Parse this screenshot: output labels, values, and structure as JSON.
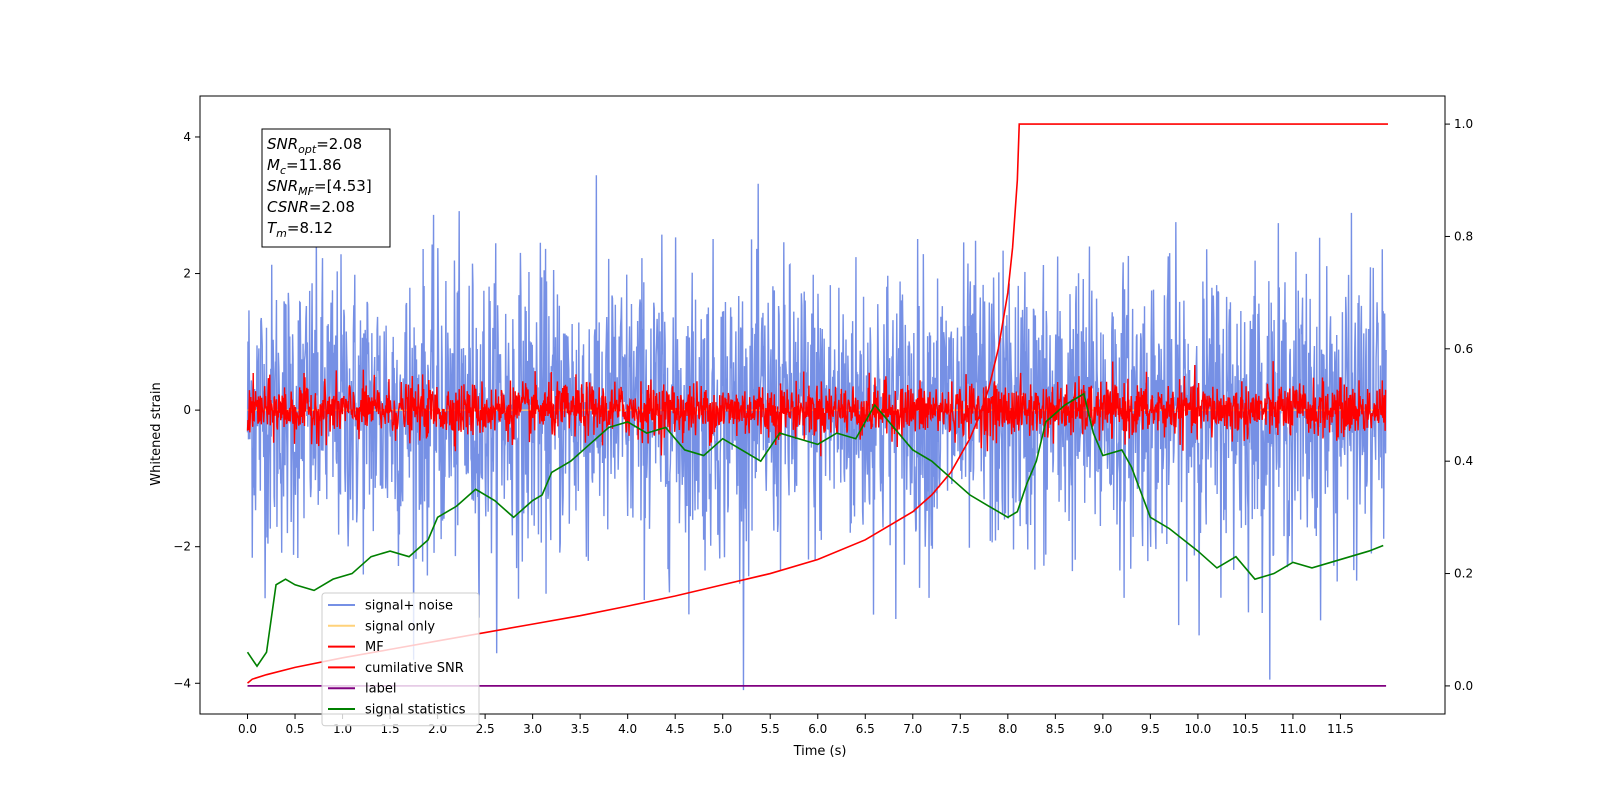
{
  "chart_data": {
    "type": "line",
    "xlabel": "Time (s)",
    "ylabel": "Whitened strain",
    "xlim": [
      -0.5,
      12.6
    ],
    "ylim_left": [
      -4.45,
      4.6
    ],
    "ylim_right": [
      -0.05,
      1.05
    ],
    "x_ticks": [
      0.0,
      0.5,
      1.0,
      1.5,
      2.0,
      2.5,
      3.0,
      3.5,
      4.0,
      4.5,
      5.0,
      5.5,
      6.0,
      6.5,
      7.0,
      7.5,
      8.0,
      8.5,
      9.0,
      9.5,
      10.0,
      10.5,
      11.0,
      11.5
    ],
    "x_tick_labels": [
      "0.0",
      "0.5",
      "1.0",
      "1.5",
      "2.0",
      "2.5",
      "3.0",
      "3.5",
      "4.0",
      "4.5",
      "5.0",
      "5.5",
      "6.0",
      "6.5",
      "7.0",
      "7.5",
      "8.0",
      "8.5",
      "9.0",
      "9.5",
      "10.0",
      "10.5",
      "11.0",
      "11.5"
    ],
    "y_left_ticks": [
      -4,
      -2,
      0,
      2,
      4
    ],
    "y_left_tick_labels": [
      "−4",
      "−2",
      "0",
      "2",
      "4"
    ],
    "y_right_ticks": [
      0.0,
      0.2,
      0.4,
      0.6,
      0.8,
      1.0
    ],
    "y_right_tick_labels": [
      "0.0",
      "0.2",
      "0.4",
      "0.6",
      "0.8",
      "1.0"
    ],
    "annotation": {
      "lines": [
        {
          "sym": "SNR",
          "sub": "opt",
          "value": "=2.08"
        },
        {
          "sym": "M",
          "sub": "c",
          "value": "=11.86"
        },
        {
          "sym": "SNR",
          "sub": "MF",
          "value": "=[4.53]"
        },
        {
          "sym": "CSNR",
          "sub": "",
          "value": "=2.08"
        },
        {
          "sym": "T",
          "sub": "m",
          "value": "=8.12"
        }
      ]
    },
    "series": [
      {
        "name": "signal+ noise",
        "color": "#7690e5",
        "axis": "left",
        "noise_std": 1.05,
        "x_range": [
          0.0,
          11.98
        ]
      },
      {
        "name": "signal only",
        "color": "#ffd27a",
        "axis": "left",
        "x_range": [
          0.0,
          11.98
        ]
      },
      {
        "name": "MF",
        "color": "#ff0000",
        "axis": "left",
        "noise_std": 0.2,
        "x_range": [
          0.0,
          11.98
        ]
      },
      {
        "name": "cumilative SNR",
        "color": "#ff0000",
        "axis": "right",
        "x": [
          0.0,
          0.05,
          0.2,
          0.5,
          1.0,
          1.5,
          2.0,
          2.5,
          3.0,
          3.5,
          4.0,
          4.5,
          5.0,
          5.5,
          6.0,
          6.5,
          7.0,
          7.2,
          7.4,
          7.6,
          7.7,
          7.8,
          7.9,
          8.0,
          8.05,
          8.1,
          8.12,
          12.0
        ],
        "y": [
          0.005,
          0.012,
          0.02,
          0.033,
          0.05,
          0.065,
          0.08,
          0.095,
          0.11,
          0.125,
          0.142,
          0.16,
          0.18,
          0.2,
          0.225,
          0.26,
          0.31,
          0.34,
          0.38,
          0.44,
          0.48,
          0.53,
          0.6,
          0.7,
          0.78,
          0.9,
          1.0,
          1.0
        ]
      },
      {
        "name": "label",
        "color": "#800080",
        "axis": "right",
        "x": [
          0.0,
          11.98
        ],
        "y": [
          0.0,
          0.0
        ]
      },
      {
        "name": "signal statistics",
        "color": "#008000",
        "axis": "right",
        "x": [
          0.0,
          0.1,
          0.2,
          0.3,
          0.4,
          0.5,
          0.7,
          0.9,
          1.1,
          1.3,
          1.5,
          1.7,
          1.9,
          2.0,
          2.2,
          2.4,
          2.6,
          2.8,
          3.0,
          3.1,
          3.2,
          3.4,
          3.6,
          3.8,
          4.0,
          4.2,
          4.4,
          4.6,
          4.8,
          5.0,
          5.2,
          5.4,
          5.6,
          5.8,
          6.0,
          6.2,
          6.4,
          6.6,
          6.8,
          7.0,
          7.2,
          7.4,
          7.6,
          7.8,
          8.0,
          8.1,
          8.2,
          8.3,
          8.4,
          8.6,
          8.8,
          8.9,
          9.0,
          9.2,
          9.3,
          9.5,
          9.7,
          10.0,
          10.2,
          10.4,
          10.6,
          10.8,
          11.0,
          11.2,
          11.4,
          11.6,
          11.8,
          11.95
        ],
        "y": [
          0.06,
          0.035,
          0.06,
          0.18,
          0.19,
          0.18,
          0.17,
          0.19,
          0.2,
          0.23,
          0.24,
          0.23,
          0.26,
          0.3,
          0.32,
          0.35,
          0.33,
          0.3,
          0.33,
          0.34,
          0.38,
          0.4,
          0.43,
          0.46,
          0.47,
          0.45,
          0.46,
          0.42,
          0.41,
          0.44,
          0.42,
          0.4,
          0.45,
          0.44,
          0.43,
          0.45,
          0.44,
          0.5,
          0.46,
          0.42,
          0.4,
          0.37,
          0.34,
          0.32,
          0.3,
          0.31,
          0.36,
          0.4,
          0.47,
          0.5,
          0.52,
          0.45,
          0.41,
          0.42,
          0.39,
          0.3,
          0.28,
          0.24,
          0.21,
          0.23,
          0.19,
          0.2,
          0.22,
          0.21,
          0.22,
          0.23,
          0.24,
          0.25
        ]
      }
    ],
    "legend": {
      "placement": "lower-left",
      "entries": [
        {
          "label": "signal+ noise",
          "color": "#7690e5"
        },
        {
          "label": "signal only",
          "color": "#ffd27a"
        },
        {
          "label": "MF",
          "color": "#ff0000"
        },
        {
          "label": "cumilative SNR",
          "color": "#ff0000"
        },
        {
          "label": "label",
          "color": "#800080"
        },
        {
          "label": "signal statistics",
          "color": "#008000"
        }
      ]
    },
    "grid": false
  }
}
